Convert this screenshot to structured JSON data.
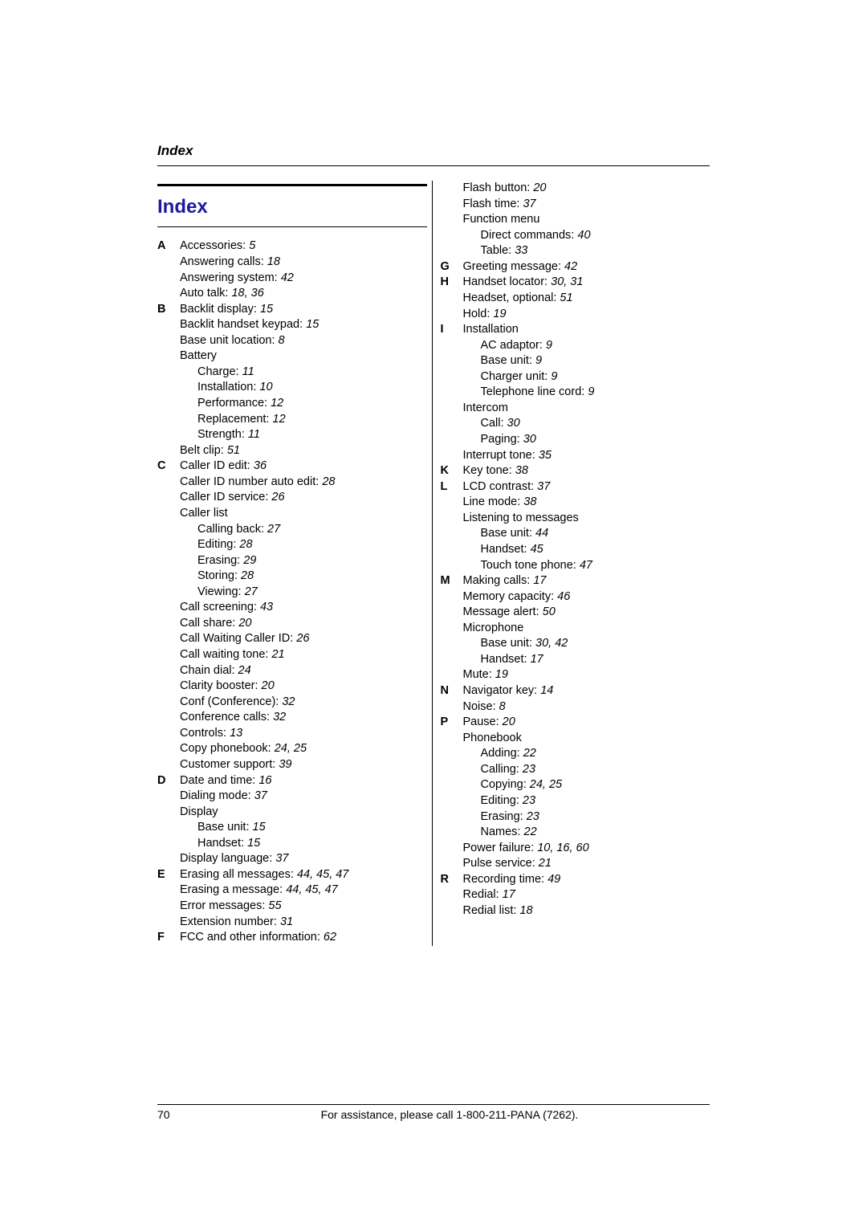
{
  "header": {
    "label": "Index"
  },
  "title": "Index",
  "footer": {
    "page": "70",
    "text": "For assistance, please call 1-800-211-PANA (7262)."
  },
  "left": [
    {
      "letter": "A",
      "entries": [
        {
          "t": "Accessories: ",
          "p": "5"
        },
        {
          "t": "Answering calls: ",
          "p": "18"
        },
        {
          "t": "Answering system: ",
          "p": "42"
        },
        {
          "t": "Auto talk: ",
          "p": "18, 36"
        }
      ]
    },
    {
      "letter": "B",
      "entries": [
        {
          "t": "Backlit display: ",
          "p": "15"
        },
        {
          "t": "Backlit handset keypad: ",
          "p": "15"
        },
        {
          "t": "Base unit location: ",
          "p": "8"
        },
        {
          "t": "Battery"
        },
        {
          "t": "Charge: ",
          "p": "11",
          "sub": true
        },
        {
          "t": "Installation: ",
          "p": "10",
          "sub": true
        },
        {
          "t": "Performance: ",
          "p": "12",
          "sub": true
        },
        {
          "t": "Replacement: ",
          "p": "12",
          "sub": true
        },
        {
          "t": "Strength: ",
          "p": "11",
          "sub": true
        },
        {
          "t": "Belt clip: ",
          "p": "51"
        }
      ]
    },
    {
      "letter": "C",
      "entries": [
        {
          "t": "Caller ID edit: ",
          "p": "36"
        },
        {
          "t": "Caller ID number auto edit: ",
          "p": "28"
        },
        {
          "t": "Caller ID service: ",
          "p": "26"
        },
        {
          "t": "Caller list"
        },
        {
          "t": "Calling back: ",
          "p": "27",
          "sub": true
        },
        {
          "t": "Editing: ",
          "p": "28",
          "sub": true
        },
        {
          "t": "Erasing: ",
          "p": "29",
          "sub": true
        },
        {
          "t": "Storing: ",
          "p": "28",
          "sub": true
        },
        {
          "t": "Viewing: ",
          "p": "27",
          "sub": true
        },
        {
          "t": "Call screening: ",
          "p": "43"
        },
        {
          "t": "Call share: ",
          "p": "20"
        },
        {
          "t": "Call Waiting Caller ID: ",
          "p": "26"
        },
        {
          "t": "Call waiting tone: ",
          "p": "21"
        },
        {
          "t": "Chain dial: ",
          "p": "24"
        },
        {
          "t": "Clarity booster: ",
          "p": "20"
        },
        {
          "t": "Conf (Conference): ",
          "p": "32"
        },
        {
          "t": "Conference calls: ",
          "p": "32"
        },
        {
          "t": "Controls: ",
          "p": "13"
        },
        {
          "t": "Copy phonebook: ",
          "p": "24, 25"
        },
        {
          "t": "Customer support: ",
          "p": "39"
        }
      ]
    },
    {
      "letter": "D",
      "entries": [
        {
          "t": "Date and time: ",
          "p": "16"
        },
        {
          "t": "Dialing mode: ",
          "p": "37"
        },
        {
          "t": "Display"
        },
        {
          "t": "Base unit: ",
          "p": "15",
          "sub": true
        },
        {
          "t": "Handset: ",
          "p": "15",
          "sub": true
        },
        {
          "t": "Display language: ",
          "p": "37"
        }
      ]
    },
    {
      "letter": "E",
      "entries": [
        {
          "t": "Erasing all messages: ",
          "p": "44, 45, 47"
        },
        {
          "t": "Erasing a message: ",
          "p": "44, 45, 47"
        },
        {
          "t": "Error messages: ",
          "p": "55"
        },
        {
          "t": "Extension number: ",
          "p": "31"
        }
      ]
    },
    {
      "letter": "F",
      "entries": [
        {
          "t": "FCC and other information: ",
          "p": "62"
        }
      ]
    }
  ],
  "right": [
    {
      "letter": "",
      "entries": [
        {
          "t": "Flash button: ",
          "p": "20",
          "sub": true
        },
        {
          "t": "Flash time: ",
          "p": "37",
          "sub": true
        },
        {
          "t": "Function menu",
          "sub": true
        },
        {
          "t": "Direct commands: ",
          "p": "40",
          "sub2": true
        },
        {
          "t": "Table: ",
          "p": "33",
          "sub2": true
        }
      ]
    },
    {
      "letter": "G",
      "entries": [
        {
          "t": "Greeting message: ",
          "p": "42"
        }
      ]
    },
    {
      "letter": "H",
      "entries": [
        {
          "t": "Handset locator: ",
          "p": "30, 31"
        },
        {
          "t": "Headset, optional: ",
          "p": "51"
        },
        {
          "t": "Hold: ",
          "p": "19"
        }
      ]
    },
    {
      "letter": "I",
      "entries": [
        {
          "t": "Installation"
        },
        {
          "t": "AC adaptor: ",
          "p": "9",
          "sub": true
        },
        {
          "t": "Base unit: ",
          "p": "9",
          "sub": true
        },
        {
          "t": "Charger unit: ",
          "p": "9",
          "sub": true
        },
        {
          "t": "Telephone line cord: ",
          "p": "9",
          "sub": true
        },
        {
          "t": "Intercom"
        },
        {
          "t": "Call: ",
          "p": "30",
          "sub": true
        },
        {
          "t": "Paging: ",
          "p": "30",
          "sub": true
        },
        {
          "t": "Interrupt tone: ",
          "p": "35"
        }
      ]
    },
    {
      "letter": "K",
      "entries": [
        {
          "t": "Key tone: ",
          "p": "38"
        }
      ]
    },
    {
      "letter": "L",
      "entries": [
        {
          "t": "LCD contrast: ",
          "p": "37"
        },
        {
          "t": "Line mode: ",
          "p": "38"
        },
        {
          "t": "Listening to messages"
        },
        {
          "t": "Base unit: ",
          "p": "44",
          "sub": true
        },
        {
          "t": "Handset: ",
          "p": "45",
          "sub": true
        },
        {
          "t": "Touch tone phone: ",
          "p": "47",
          "sub": true
        }
      ]
    },
    {
      "letter": "M",
      "entries": [
        {
          "t": "Making calls: ",
          "p": "17"
        },
        {
          "t": "Memory capacity: ",
          "p": "46"
        },
        {
          "t": "Message alert: ",
          "p": "50"
        },
        {
          "t": "Microphone"
        },
        {
          "t": "Base unit: ",
          "p": "30, 42",
          "sub": true
        },
        {
          "t": "Handset: ",
          "p": "17",
          "sub": true
        },
        {
          "t": "Mute: ",
          "p": "19"
        }
      ]
    },
    {
      "letter": "N",
      "entries": [
        {
          "t": "Navigator key: ",
          "p": "14"
        },
        {
          "t": "Noise: ",
          "p": "8"
        }
      ]
    },
    {
      "letter": "P",
      "entries": [
        {
          "t": "Pause: ",
          "p": "20"
        },
        {
          "t": "Phonebook"
        },
        {
          "t": "Adding: ",
          "p": "22",
          "sub": true
        },
        {
          "t": "Calling: ",
          "p": "23",
          "sub": true
        },
        {
          "t": "Copying: ",
          "p": "24, 25",
          "sub": true
        },
        {
          "t": "Editing: ",
          "p": "23",
          "sub": true
        },
        {
          "t": "Erasing: ",
          "p": "23",
          "sub": true
        },
        {
          "t": "Names: ",
          "p": "22",
          "sub": true
        },
        {
          "t": "Power failure: ",
          "p": "10, 16, 60"
        },
        {
          "t": "Pulse service: ",
          "p": "21"
        }
      ]
    },
    {
      "letter": "R",
      "entries": [
        {
          "t": "Recording time: ",
          "p": "49"
        },
        {
          "t": "Redial: ",
          "p": "17"
        },
        {
          "t": "Redial list: ",
          "p": "18"
        }
      ]
    }
  ]
}
